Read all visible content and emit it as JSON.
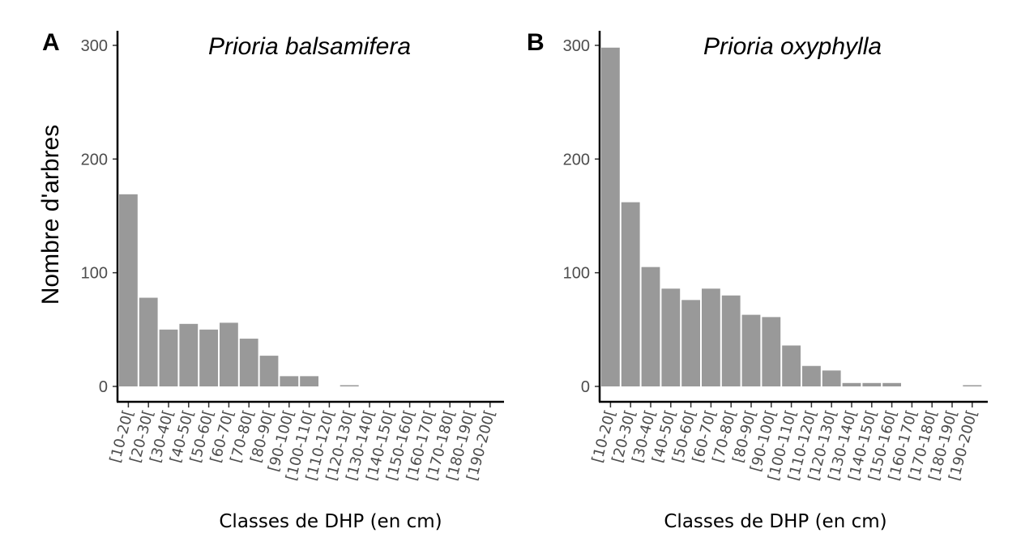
{
  "figure": {
    "ylabel": "Nombre d'arbres",
    "bar_color": "#999999"
  },
  "chart_data": [
    {
      "type": "bar",
      "panel": "A",
      "title": "Prioria balsamifera",
      "xlabel": "Classes de DHP (en cm)",
      "ylabel": "Nombre d'arbres",
      "ylim": [
        0,
        310
      ],
      "yticks": [
        0,
        100,
        200,
        300
      ],
      "categories": [
        "[10-20[",
        "[20-30[",
        "[30-40[",
        "[40-50[",
        "[50-60[",
        "[60-70[",
        "[70-80[",
        "[80-90[",
        "[90-100[",
        "[100-110[",
        "[110-120[",
        "[120-130[",
        "[130-140[",
        "[140-150[",
        "[150-160[",
        "[160-170[",
        "[170-180[",
        "[180-190[",
        "[190-200["
      ],
      "values": [
        169,
        78,
        50,
        55,
        50,
        56,
        42,
        27,
        9,
        9,
        0,
        1,
        0,
        0,
        0,
        0,
        0,
        0,
        0
      ]
    },
    {
      "type": "bar",
      "panel": "B",
      "title": "Prioria oxyphylla",
      "xlabel": "Classes de DHP (en cm)",
      "ylabel": "",
      "ylim": [
        0,
        310
      ],
      "yticks": [
        0,
        100,
        200,
        300
      ],
      "categories": [
        "[10-20[",
        "[20-30[",
        "[30-40[",
        "[40-50[",
        "[50-60[",
        "[60-70[",
        "[70-80[",
        "[80-90[",
        "[90-100[",
        "[100-110[",
        "[110-120[",
        "[120-130[",
        "[130-140[",
        "[140-150[",
        "[150-160[",
        "[160-170[",
        "[170-180[",
        "[180-190[",
        "[190-200["
      ],
      "values": [
        298,
        162,
        105,
        86,
        76,
        86,
        80,
        63,
        61,
        36,
        18,
        14,
        3,
        3,
        3,
        0,
        0,
        0,
        1
      ]
    }
  ]
}
